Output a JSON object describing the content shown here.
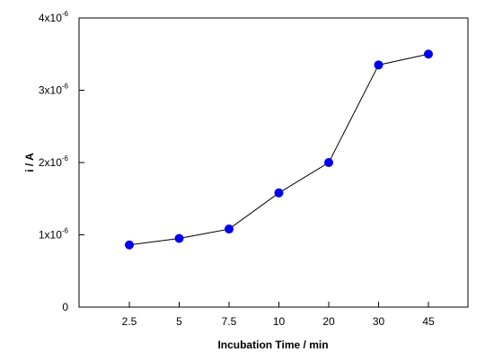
{
  "chart_data": {
    "type": "line",
    "title": "",
    "xlabel": "Incubation Time / min",
    "ylabel": "i / A",
    "categories": [
      "2.5",
      "5",
      "7.5",
      "10",
      "20",
      "30",
      "45"
    ],
    "series": [
      {
        "values": [
          8.6e-07,
          9.5e-07,
          1.08e-06,
          1.58e-06,
          2e-06,
          3.35e-06,
          3.5e-06
        ]
      }
    ],
    "ylim": [
      0,
      4e-06
    ],
    "y_ticks": [
      {
        "value": 0,
        "base": "0",
        "exp": ""
      },
      {
        "value": 1e-06,
        "base": "1x10",
        "exp": "-6"
      },
      {
        "value": 2e-06,
        "base": "2x10",
        "exp": "-6"
      },
      {
        "value": 3e-06,
        "base": "3x10",
        "exp": "-6"
      },
      {
        "value": 4e-06,
        "base": "4x10",
        "exp": "-6"
      }
    ],
    "grid": false,
    "legend": "none",
    "marker_color": "#0000ee",
    "line_color": "#000000"
  }
}
